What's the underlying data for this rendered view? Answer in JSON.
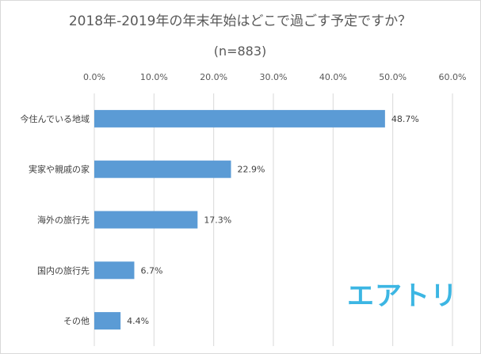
{
  "chart_data": {
    "type": "bar",
    "orientation": "horizontal",
    "title": "2018年-2019年の年末年始はどこで過ごす予定ですか？",
    "subtitle": "(n=883)",
    "categories": [
      "今住んでいる地域",
      "実家や親戚の家",
      "海外の旅行先",
      "国内の旅行先",
      "その他"
    ],
    "values": [
      48.7,
      22.9,
      17.3,
      6.7,
      4.4
    ],
    "data_labels": [
      "48.7%",
      "22.9%",
      "17.3%",
      "6.7%",
      "4.4%"
    ],
    "xlim": [
      0,
      60
    ],
    "ticks": [
      "0.0%",
      "10.0%",
      "20.0%",
      "30.0%",
      "40.0%",
      "50.0%",
      "60.0%"
    ],
    "tick_values": [
      0,
      10,
      20,
      30,
      40,
      50,
      60
    ],
    "axis_position": "top",
    "grid": true,
    "legend": "none",
    "bar_color": "#5b9bd5",
    "grid_color": "#d9d9d9"
  },
  "logo": {
    "text": "エアトリ",
    "color": "#3cb6e3"
  }
}
